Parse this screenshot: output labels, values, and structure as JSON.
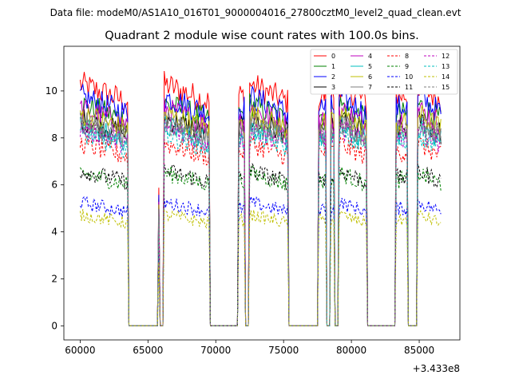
{
  "chart_data": {
    "type": "line",
    "suptitle": "Data file: modeM0/AS1A10_016T01_9000004016_27800cztM0_level2_quad_clean.evt",
    "title": "Quadrant 2 module wise count rates with 100.0s bins.",
    "xlabel": "",
    "ylabel": "",
    "x_offset_label": "+3.433e8",
    "xlim": [
      58800,
      88000
    ],
    "ylim": [
      -0.6,
      11.9
    ],
    "x_ticks": [
      60000,
      65000,
      70000,
      75000,
      80000,
      85000
    ],
    "x_tick_labels": [
      "60000",
      "65000",
      "70000",
      "75000",
      "80000",
      "85000"
    ],
    "y_ticks": [
      0,
      2,
      4,
      6,
      8,
      10
    ],
    "y_tick_labels": [
      "0",
      "2",
      "4",
      "6",
      "8",
      "10"
    ],
    "grid": false,
    "legend_position": "top-right",
    "legend_columns": 4,
    "segments": [
      {
        "x_start": 60000,
        "x_end": 63600,
        "shape": "decay"
      },
      {
        "x_start": 63600,
        "x_end": 65800,
        "shape": "zero"
      },
      {
        "x_start": 65800,
        "x_end": 65900,
        "shape": "spike"
      },
      {
        "x_start": 65900,
        "x_end": 66200,
        "shape": "zero"
      },
      {
        "x_start": 66200,
        "x_end": 69600,
        "shape": "decay"
      },
      {
        "x_start": 69600,
        "x_end": 71700,
        "shape": "zero"
      },
      {
        "x_start": 71700,
        "x_end": 72200,
        "shape": "flat"
      },
      {
        "x_start": 72200,
        "x_end": 72500,
        "shape": "zero"
      },
      {
        "x_start": 72500,
        "x_end": 75400,
        "shape": "decay"
      },
      {
        "x_start": 75400,
        "x_end": 77600,
        "shape": "zero"
      },
      {
        "x_start": 77600,
        "x_end": 78200,
        "shape": "flat"
      },
      {
        "x_start": 78200,
        "x_end": 78500,
        "shape": "zero"
      },
      {
        "x_start": 78500,
        "x_end": 78800,
        "shape": "flat"
      },
      {
        "x_start": 78800,
        "x_end": 79100,
        "shape": "zero"
      },
      {
        "x_start": 79100,
        "x_end": 81200,
        "shape": "decay"
      },
      {
        "x_start": 81200,
        "x_end": 83300,
        "shape": "zero"
      },
      {
        "x_start": 83300,
        "x_end": 84200,
        "shape": "flat"
      },
      {
        "x_start": 84200,
        "x_end": 84900,
        "shape": "zero"
      },
      {
        "x_start": 84900,
        "x_end": 86700,
        "shape": "decay"
      }
    ],
    "series": [
      {
        "name": "0",
        "level": 9.8,
        "color": "#ff0000",
        "dash": "solid"
      },
      {
        "name": "1",
        "level": 9.0,
        "color": "#008000",
        "dash": "solid"
      },
      {
        "name": "2",
        "level": 9.3,
        "color": "#0000ff",
        "dash": "solid"
      },
      {
        "name": "3",
        "level": 8.4,
        "color": "#000000",
        "dash": "solid"
      },
      {
        "name": "4",
        "level": 8.8,
        "color": "#bf00bf",
        "dash": "solid"
      },
      {
        "name": "5",
        "level": 8.1,
        "color": "#00bfbf",
        "dash": "solid"
      },
      {
        "name": "6",
        "level": 8.6,
        "color": "#bfbf00",
        "dash": "solid"
      },
      {
        "name": "7",
        "level": 8.3,
        "color": "#7f7f7f",
        "dash": "solid"
      },
      {
        "name": "8",
        "level": 7.4,
        "color": "#ff0000",
        "dash": "dashed"
      },
      {
        "name": "9",
        "level": 6.2,
        "color": "#008000",
        "dash": "dashed"
      },
      {
        "name": "10",
        "level": 5.0,
        "color": "#0000ff",
        "dash": "dashed"
      },
      {
        "name": "11",
        "level": 6.3,
        "color": "#000000",
        "dash": "dashed"
      },
      {
        "name": "12",
        "level": 8.0,
        "color": "#bf00bf",
        "dash": "dashed"
      },
      {
        "name": "13",
        "level": 7.8,
        "color": "#00bfbf",
        "dash": "dashed"
      },
      {
        "name": "14",
        "level": 4.5,
        "color": "#bfbf00",
        "dash": "dashed"
      },
      {
        "name": "15",
        "level": 8.2,
        "color": "#7f7f7f",
        "dash": "dashed"
      }
    ]
  }
}
